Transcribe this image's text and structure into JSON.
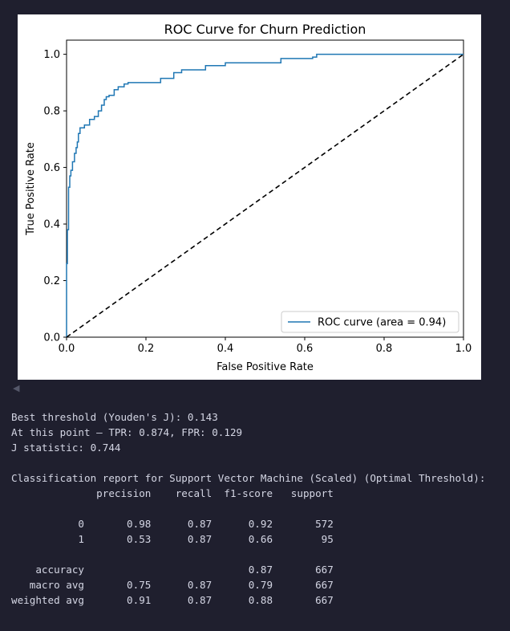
{
  "chart_data": {
    "type": "line",
    "title": "ROC Curve for Churn Prediction",
    "xlabel": "False Positive Rate",
    "ylabel": "True Positive Rate",
    "xlim": [
      0.0,
      1.0
    ],
    "ylim": [
      0.0,
      1.05
    ],
    "xticks": [
      "0.0",
      "0.2",
      "0.4",
      "0.6",
      "0.8",
      "1.0"
    ],
    "yticks": [
      "0.0",
      "0.2",
      "0.4",
      "0.6",
      "0.8",
      "1.0"
    ],
    "legend_position": "lower-right",
    "grid": false,
    "series": [
      {
        "name": "ROC curve (area = 0.94)",
        "color": "#1f77b4",
        "style": "solid",
        "x": [
          0.0,
          0.0,
          0.002,
          0.002,
          0.005,
          0.005,
          0.008,
          0.008,
          0.011,
          0.011,
          0.015,
          0.015,
          0.02,
          0.02,
          0.024,
          0.024,
          0.027,
          0.027,
          0.03,
          0.03,
          0.034,
          0.034,
          0.038,
          0.038,
          0.045,
          0.045,
          0.058,
          0.058,
          0.07,
          0.07,
          0.08,
          0.08,
          0.088,
          0.088,
          0.095,
          0.095,
          0.1,
          0.1,
          0.107,
          0.107,
          0.12,
          0.12,
          0.13,
          0.13,
          0.145,
          0.145,
          0.155,
          0.155,
          0.237,
          0.237,
          0.27,
          0.27,
          0.29,
          0.29,
          0.35,
          0.35,
          0.4,
          0.4,
          0.54,
          0.54,
          0.62,
          0.62,
          0.63,
          0.63,
          1.0
        ],
        "y": [
          0.0,
          0.26,
          0.26,
          0.38,
          0.38,
          0.53,
          0.53,
          0.57,
          0.57,
          0.59,
          0.59,
          0.62,
          0.62,
          0.65,
          0.65,
          0.67,
          0.67,
          0.69,
          0.69,
          0.72,
          0.72,
          0.74,
          0.74,
          0.74,
          0.74,
          0.75,
          0.75,
          0.77,
          0.77,
          0.78,
          0.78,
          0.8,
          0.8,
          0.82,
          0.82,
          0.84,
          0.84,
          0.85,
          0.85,
          0.855,
          0.855,
          0.875,
          0.875,
          0.885,
          0.885,
          0.895,
          0.895,
          0.9,
          0.9,
          0.915,
          0.915,
          0.935,
          0.935,
          0.945,
          0.945,
          0.96,
          0.96,
          0.97,
          0.97,
          0.985,
          0.985,
          0.99,
          0.99,
          1.0,
          1.0
        ]
      },
      {
        "name": "",
        "color": "#000000",
        "style": "dashed",
        "x": [
          0.0,
          1.0
        ],
        "y": [
          0.0,
          1.0
        ]
      }
    ]
  },
  "output": {
    "lines": [
      "Best threshold (Youden's J): 0.143",
      "At this point — TPR: 0.874, FPR: 0.129",
      "J statistic: 0.744",
      "",
      "Classification report for Support Vector Machine (Scaled) (Optimal Threshold):",
      "              precision    recall  f1-score   support",
      "",
      "           0       0.98      0.87      0.92       572",
      "           1       0.53      0.87      0.66        95",
      "",
      "    accuracy                           0.87       667",
      "   macro avg       0.75      0.87      0.79       667",
      "weighted avg       0.91      0.87      0.88       667"
    ]
  },
  "icons": {
    "scroll": "left-triangle-icon"
  }
}
